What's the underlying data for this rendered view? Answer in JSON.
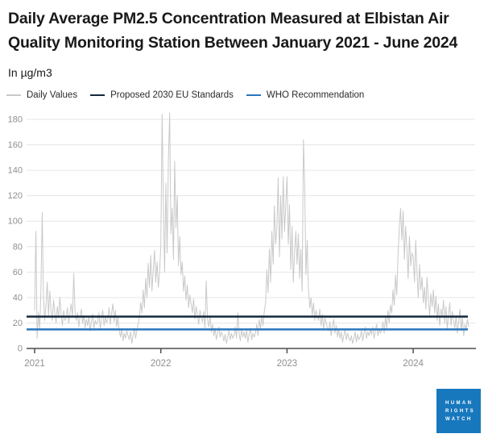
{
  "header": {
    "title": "Daily Average PM2.5 Concentration Measured at Elbistan Air Quality Monitoring Station Between January 2021 - June 2024",
    "subtitle": "In µg/m3"
  },
  "legend": [
    {
      "label": "Daily Values",
      "color": "#c9c9c9"
    },
    {
      "label": "Proposed 2030 EU Standards",
      "color": "#14283e"
    },
    {
      "label": "WHO Recommendation",
      "color": "#2a76bd"
    }
  ],
  "logo": {
    "lines": [
      "HUMAN",
      "RIGHTS",
      "WATCH"
    ],
    "bg_color": "#1878be"
  },
  "chart_data": {
    "type": "line",
    "title": "Daily Average PM2.5 Concentration Measured at Elbistan Air Quality Monitoring Station Between January 2021 - June 2024",
    "ylabel": "µg/m3",
    "xlabel": "",
    "ylim": [
      0,
      186
    ],
    "yticks": [
      0,
      20,
      40,
      60,
      80,
      100,
      120,
      140,
      160,
      180
    ],
    "xticks": [
      2021,
      2022,
      2023,
      2024
    ],
    "x_range": [
      2021.0,
      2024.45
    ],
    "grid": true,
    "legend_position": "top",
    "colors": {
      "daily": "#c9c9c9",
      "eu_line": "#14283e",
      "who_line": "#2a76bd",
      "gridline": "#e6e6e6",
      "axis": "#4d4d4d",
      "tick_label": "#8f8f8f"
    },
    "reference_lines": [
      {
        "name": "Proposed 2030 EU Standards",
        "value": 25,
        "color": "#14283e"
      },
      {
        "name": "WHO Recommendation",
        "value": 15,
        "color": "#2a76bd"
      }
    ],
    "series": [
      {
        "name": "Daily Values",
        "color": "#c9c9c9",
        "x_start": 2021.0,
        "x_step_years": 0.01,
        "values": [
          30,
          92,
          8,
          28,
          15,
          45,
          107,
          40,
          22,
          35,
          52,
          26,
          45,
          30,
          22,
          38,
          28,
          20,
          33,
          24,
          40,
          27,
          18,
          30,
          22,
          24,
          32,
          20,
          28,
          35,
          25,
          59,
          30,
          22,
          28,
          17,
          25,
          31,
          20,
          26,
          16,
          23,
          18,
          25,
          14,
          21,
          27,
          16,
          22,
          19,
          21,
          28,
          15,
          24,
          30,
          18,
          25,
          20,
          23,
          32,
          19,
          28,
          35,
          21,
          30,
          17,
          25,
          14,
          9,
          15,
          6,
          12,
          8,
          14,
          10,
          7,
          13,
          4,
          10,
          16,
          8,
          14,
          19,
          24,
          36,
          28,
          46,
          32,
          55,
          40,
          67,
          48,
          73,
          45,
          62,
          77,
          52,
          68,
          48,
          60,
          80,
          184,
          115,
          60,
          130,
          75,
          148,
          185,
          90,
          110,
          70,
          147,
          95,
          120,
          65,
          88,
          58,
          68,
          45,
          57,
          38,
          50,
          32,
          42,
          35,
          28,
          39,
          23,
          33,
          26,
          19,
          30,
          24,
          21,
          29,
          16,
          53,
          23,
          17,
          26,
          13,
          19,
          10,
          16,
          7,
          12,
          17,
          9,
          13,
          10,
          6,
          11,
          4,
          9,
          14,
          7,
          12,
          8,
          10,
          17,
          8,
          28,
          12,
          6,
          15,
          9,
          13,
          8,
          14,
          5,
          11,
          16,
          7,
          12,
          9,
          12,
          19,
          10,
          23,
          15,
          26,
          18,
          29,
          36,
          62,
          44,
          78,
          52,
          92,
          66,
          112,
          82,
          96,
          134,
          72,
          120,
          86,
          135,
          92,
          112,
          135,
          82,
          113,
          62,
          96,
          52,
          76,
          92,
          66,
          90,
          55,
          78,
          45,
          164,
          130,
          58,
          85,
          47,
          32,
          40,
          26,
          36,
          22,
          30,
          25,
          22,
          31,
          18,
          27,
          15,
          24,
          20,
          16,
          14,
          21,
          10,
          17,
          23,
          12,
          18,
          9,
          15,
          8,
          13,
          5,
          10,
          15,
          7,
          12,
          8,
          6,
          10,
          4,
          8,
          13,
          5,
          11,
          7,
          9,
          14,
          6,
          12,
          17,
          8,
          13,
          10,
          15,
          11,
          17,
          8,
          14,
          19,
          10,
          15,
          12,
          14,
          21,
          12,
          25,
          16,
          30,
          20,
          34,
          28,
          46,
          34,
          58,
          42,
          74,
          95,
          110,
          85,
          108,
          70,
          96,
          78,
          55,
          88,
          65,
          75,
          72,
          52,
          85,
          60,
          40,
          66,
          46,
          56,
          36,
          48,
          31,
          56,
          38,
          26,
          43,
          33,
          46,
          28,
          41,
          22,
          35,
          18,
          31,
          25,
          38,
          20,
          33,
          15,
          27,
          36,
          18,
          29,
          22,
          16,
          26,
          12,
          21,
          31,
          14,
          24,
          10,
          19,
          15,
          23,
          17
        ]
      }
    ]
  }
}
